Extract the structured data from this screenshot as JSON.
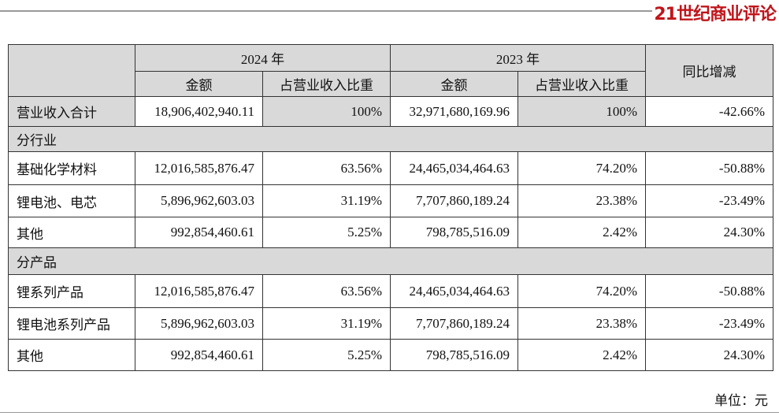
{
  "header": {
    "logo": "21世纪商业评论"
  },
  "table": {
    "groups": [
      {
        "label": "2024 年",
        "columns": [
          "金额",
          "占营业收入比重"
        ]
      },
      {
        "label": "2023 年",
        "columns": [
          "金额",
          "占营业收入比重"
        ]
      }
    ],
    "change_label": "同比增减",
    "rows": [
      [
        "营业收入合计",
        "18,906,402,940.11",
        "100%",
        "32,971,680,169.96",
        "100%",
        "-42.66%"
      ],
      [
        "分行业"
      ],
      [
        "基础化学材料",
        "12,016,585,876.47",
        "63.56%",
        "24,465,034,464.63",
        "74.20%",
        "-50.88%"
      ],
      [
        "锂电池、电芯",
        "5,896,962,603.03",
        "31.19%",
        "7,707,860,189.24",
        "23.38%",
        "-23.49%"
      ],
      [
        "其他",
        "992,854,460.61",
        "5.25%",
        "798,785,516.09",
        "2.42%",
        "24.30%"
      ],
      [
        "分产品"
      ],
      [
        "锂系列产品",
        "12,016,585,876.47",
        "63.56%",
        "24,465,034,464.63",
        "74.20%",
        "-50.88%"
      ],
      [
        "锂电池系列产品",
        "5,896,962,603.03",
        "31.19%",
        "7,707,860,189.24",
        "23.38%",
        "-23.49%"
      ],
      [
        "其他",
        "992,854,460.61",
        "5.25%",
        "798,785,516.09",
        "2.42%",
        "24.30%"
      ]
    ]
  },
  "footer": {
    "unit": "单位：元"
  }
}
